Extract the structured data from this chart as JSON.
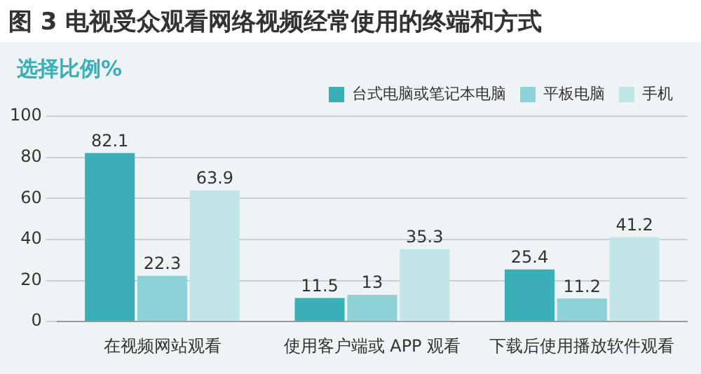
{
  "chart_data": {
    "type": "bar",
    "title": "图 3 电视受众观看网络视频经常使用的终端和方式",
    "subtitle": "选择比例%",
    "categories": [
      "在视频网站观看",
      "使用客户端或 APP 观看",
      "下载后使用播放软件观看"
    ],
    "series": [
      {
        "name": "台式电脑或笔记本电脑",
        "color": "#3aafb7",
        "values": [
          82.1,
          11.5,
          25.4
        ]
      },
      {
        "name": "平板电脑",
        "color": "#8ed1d6",
        "values": [
          22.3,
          13,
          11.2
        ]
      },
      {
        "name": "手机",
        "color": "#c2e5e8",
        "values": [
          63.9,
          35.3,
          41.2
        ]
      }
    ],
    "ylim": [
      0,
      100
    ],
    "yticks": [
      0,
      20,
      40,
      60,
      80,
      100
    ],
    "grid": "y",
    "legend": "top right",
    "data_labels": true
  }
}
